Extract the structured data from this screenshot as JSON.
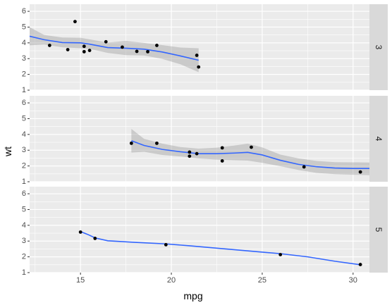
{
  "chart_data": {
    "type": "scatter",
    "facet_by": "cyl",
    "xlabel": "mpg",
    "ylabel": "wt",
    "xlim": [
      12.2,
      30.9
    ],
    "ylim": [
      1,
      6.45
    ],
    "x_ticks": [
      15,
      20,
      25,
      30
    ],
    "y_ticks": [
      1,
      2,
      3,
      4,
      5,
      6
    ],
    "grid": true,
    "background_color": "#ebebeb",
    "strip_color": "#d9d9d9",
    "point_color": "#000000",
    "smooth_color": "#3366ff",
    "ribbon_color": "#999999",
    "panels": [
      {
        "label": "3",
        "points": [
          {
            "x": 13.3,
            "y": 3.84
          },
          {
            "x": 14.3,
            "y": 3.57
          },
          {
            "x": 14.7,
            "y": 5.35
          },
          {
            "x": 15.2,
            "y": 3.44
          },
          {
            "x": 15.2,
            "y": 3.78
          },
          {
            "x": 15.5,
            "y": 3.52
          },
          {
            "x": 16.4,
            "y": 4.07
          },
          {
            "x": 17.3,
            "y": 3.73
          },
          {
            "x": 18.1,
            "y": 3.46
          },
          {
            "x": 18.7,
            "y": 3.44
          },
          {
            "x": 19.2,
            "y": 3.84
          },
          {
            "x": 21.4,
            "y": 3.21
          },
          {
            "x": 21.5,
            "y": 2.47
          }
        ],
        "smooth": [
          {
            "x": 12.2,
            "y": 4.42
          },
          {
            "x": 13.0,
            "y": 4.2
          },
          {
            "x": 14.0,
            "y": 4.02
          },
          {
            "x": 15.0,
            "y": 4.0
          },
          {
            "x": 15.5,
            "y": 3.92
          },
          {
            "x": 16.5,
            "y": 3.7
          },
          {
            "x": 17.5,
            "y": 3.66
          },
          {
            "x": 18.5,
            "y": 3.6
          },
          {
            "x": 19.5,
            "y": 3.42
          },
          {
            "x": 20.5,
            "y": 3.17
          },
          {
            "x": 21.5,
            "y": 2.9
          }
        ],
        "ribbon_upper": [
          {
            "x": 12.2,
            "y": 5.0
          },
          {
            "x": 13.0,
            "y": 4.5
          },
          {
            "x": 14.0,
            "y": 4.34
          },
          {
            "x": 15.0,
            "y": 4.32
          },
          {
            "x": 15.5,
            "y": 4.22
          },
          {
            "x": 16.5,
            "y": 4.02
          },
          {
            "x": 17.5,
            "y": 4.12
          },
          {
            "x": 18.5,
            "y": 4.0
          },
          {
            "x": 19.5,
            "y": 3.86
          },
          {
            "x": 20.5,
            "y": 3.7
          },
          {
            "x": 21.5,
            "y": 3.66
          }
        ],
        "ribbon_lower": [
          {
            "x": 12.2,
            "y": 3.84
          },
          {
            "x": 13.0,
            "y": 3.9
          },
          {
            "x": 14.0,
            "y": 3.72
          },
          {
            "x": 15.0,
            "y": 3.66
          },
          {
            "x": 15.5,
            "y": 3.62
          },
          {
            "x": 16.5,
            "y": 3.36
          },
          {
            "x": 17.5,
            "y": 3.22
          },
          {
            "x": 18.5,
            "y": 3.2
          },
          {
            "x": 19.5,
            "y": 2.98
          },
          {
            "x": 20.5,
            "y": 2.64
          },
          {
            "x": 21.5,
            "y": 2.14
          }
        ]
      },
      {
        "label": "4",
        "points": [
          {
            "x": 17.8,
            "y": 3.44
          },
          {
            "x": 19.2,
            "y": 3.44
          },
          {
            "x": 21.0,
            "y": 2.62
          },
          {
            "x": 21.0,
            "y": 2.88
          },
          {
            "x": 21.4,
            "y": 2.78
          },
          {
            "x": 22.8,
            "y": 2.32
          },
          {
            "x": 22.8,
            "y": 3.15
          },
          {
            "x": 24.4,
            "y": 3.19
          },
          {
            "x": 27.3,
            "y": 1.94
          },
          {
            "x": 30.4,
            "y": 1.62
          }
        ],
        "smooth": [
          {
            "x": 17.8,
            "y": 3.6
          },
          {
            "x": 18.5,
            "y": 3.3
          },
          {
            "x": 19.5,
            "y": 3.05
          },
          {
            "x": 20.5,
            "y": 2.9
          },
          {
            "x": 21.5,
            "y": 2.78
          },
          {
            "x": 22.5,
            "y": 2.78
          },
          {
            "x": 23.5,
            "y": 2.82
          },
          {
            "x": 24.2,
            "y": 2.86
          },
          {
            "x": 25.0,
            "y": 2.7
          },
          {
            "x": 26.0,
            "y": 2.36
          },
          {
            "x": 27.0,
            "y": 2.1
          },
          {
            "x": 28.0,
            "y": 1.95
          },
          {
            "x": 29.0,
            "y": 1.87
          },
          {
            "x": 30.0,
            "y": 1.84
          },
          {
            "x": 30.9,
            "y": 1.84
          }
        ],
        "ribbon_upper": [
          {
            "x": 17.8,
            "y": 4.35
          },
          {
            "x": 18.5,
            "y": 3.72
          },
          {
            "x": 19.5,
            "y": 3.42
          },
          {
            "x": 20.5,
            "y": 3.2
          },
          {
            "x": 21.5,
            "y": 3.1
          },
          {
            "x": 22.5,
            "y": 3.16
          },
          {
            "x": 23.5,
            "y": 3.3
          },
          {
            "x": 24.2,
            "y": 3.42
          },
          {
            "x": 25.0,
            "y": 3.18
          },
          {
            "x": 26.0,
            "y": 2.72
          },
          {
            "x": 27.0,
            "y": 2.48
          },
          {
            "x": 28.0,
            "y": 2.32
          },
          {
            "x": 29.0,
            "y": 2.24
          },
          {
            "x": 30.0,
            "y": 2.23
          },
          {
            "x": 30.9,
            "y": 2.22
          }
        ],
        "ribbon_lower": [
          {
            "x": 17.8,
            "y": 2.85
          },
          {
            "x": 18.5,
            "y": 2.9
          },
          {
            "x": 19.5,
            "y": 2.7
          },
          {
            "x": 20.5,
            "y": 2.6
          },
          {
            "x": 21.5,
            "y": 2.48
          },
          {
            "x": 22.5,
            "y": 2.4
          },
          {
            "x": 23.5,
            "y": 2.36
          },
          {
            "x": 24.2,
            "y": 2.34
          },
          {
            "x": 25.0,
            "y": 2.2
          },
          {
            "x": 26.0,
            "y": 1.98
          },
          {
            "x": 27.0,
            "y": 1.74
          },
          {
            "x": 28.0,
            "y": 1.56
          },
          {
            "x": 29.0,
            "y": 1.48
          },
          {
            "x": 30.0,
            "y": 1.44
          },
          {
            "x": 30.9,
            "y": 1.42
          }
        ]
      },
      {
        "label": "5",
        "points": [
          {
            "x": 15.0,
            "y": 3.57
          },
          {
            "x": 15.8,
            "y": 3.17
          },
          {
            "x": 19.7,
            "y": 2.77
          },
          {
            "x": 26.0,
            "y": 2.14
          },
          {
            "x": 30.4,
            "y": 1.51
          }
        ],
        "smooth": [
          {
            "x": 15.0,
            "y": 3.6
          },
          {
            "x": 15.4,
            "y": 3.42
          },
          {
            "x": 15.8,
            "y": 3.2
          },
          {
            "x": 16.5,
            "y": 3.02
          },
          {
            "x": 18.0,
            "y": 2.92
          },
          {
            "x": 19.7,
            "y": 2.82
          },
          {
            "x": 21.0,
            "y": 2.7
          },
          {
            "x": 23.0,
            "y": 2.5
          },
          {
            "x": 25.0,
            "y": 2.3
          },
          {
            "x": 26.0,
            "y": 2.2
          },
          {
            "x": 27.5,
            "y": 2.0
          },
          {
            "x": 29.0,
            "y": 1.72
          },
          {
            "x": 30.4,
            "y": 1.5
          }
        ],
        "ribbon_upper": [],
        "ribbon_lower": []
      }
    ]
  }
}
